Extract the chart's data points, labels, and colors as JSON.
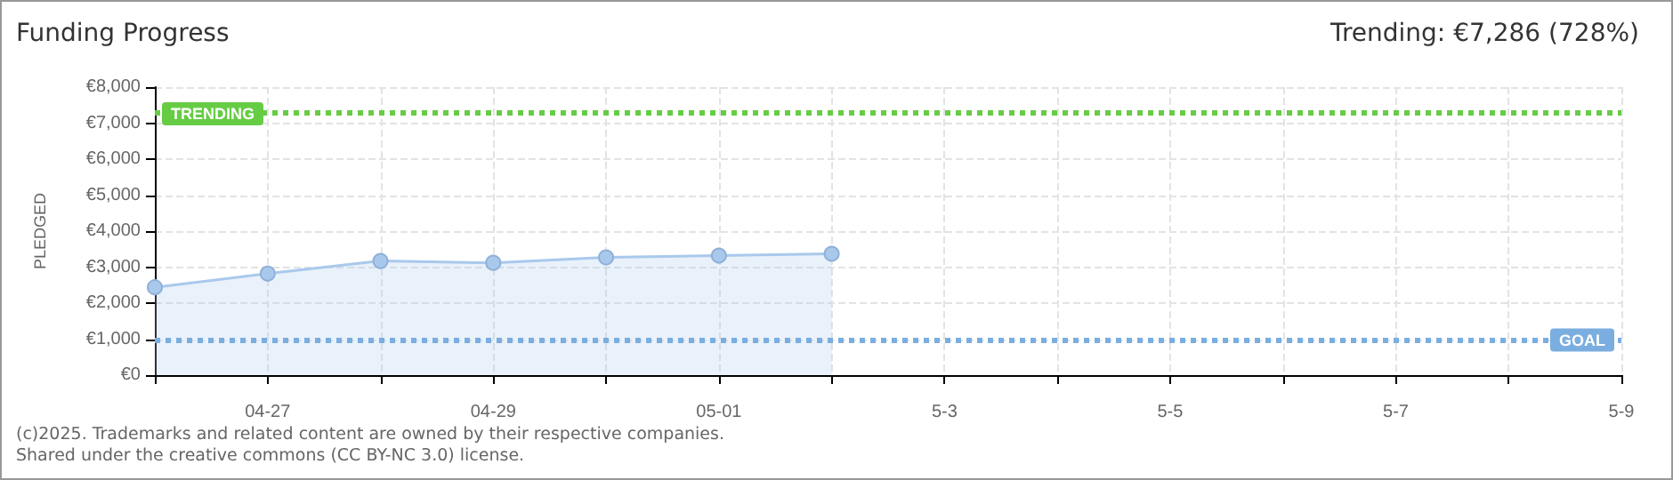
{
  "chart_data": {
    "type": "area",
    "title": "Funding Progress",
    "subtitle": "Trending: €7,286 (728%)",
    "ylabel": "PLEDGED",
    "x": [
      "--04-26",
      "--04-27",
      "--04-28",
      "--04-29",
      "--04-30",
      "--05-01",
      "--05-02"
    ],
    "series": [
      {
        "color": "#a9c9ec",
        "values": [
          2440,
          2820,
          3170,
          3120,
          3270,
          3320,
          3370
        ]
      }
    ],
    "xlim": [
      "--04-26",
      "--05-09"
    ],
    "xticks": [
      {
        "value": "--04-26",
        "label": null
      },
      {
        "value": "--04-27",
        "label": "04-27"
      },
      {
        "value": "--04-28",
        "label": null
      },
      {
        "value": "--04-29",
        "label": "04-29"
      },
      {
        "value": "--04-30",
        "label": null
      },
      {
        "value": "--05-01",
        "label": "05-01"
      },
      {
        "value": "--05-02",
        "label": null
      },
      {
        "value": "--05-03",
        "label": "5-3"
      },
      {
        "value": "--05-04",
        "label": null
      },
      {
        "value": "--05-05",
        "label": "5-5"
      },
      {
        "value": "--05-06",
        "label": null
      },
      {
        "value": "--05-07",
        "label": "5-7"
      },
      {
        "value": "--05-08",
        "label": null
      },
      {
        "value": "--05-09",
        "label": "5-9"
      }
    ],
    "ylim": [
      0,
      8000
    ],
    "yticks": [
      {
        "value": 0,
        "label": "€0"
      },
      {
        "value": 1000,
        "label": "€1,000"
      },
      {
        "value": 2000,
        "label": "€2,000"
      },
      {
        "value": 3000,
        "label": "€3,000"
      },
      {
        "value": 4000,
        "label": "€4,000"
      },
      {
        "value": 5000,
        "label": "€5,000"
      },
      {
        "value": 6000,
        "label": "€6,000"
      },
      {
        "value": 7000,
        "label": "€7,000"
      },
      {
        "value": 8000,
        "label": "€8,000"
      }
    ],
    "ref_lines": [
      {
        "axis": "y",
        "value": 7286,
        "label": "TRENDING",
        "color": "#66cc44",
        "line_style": "dotted"
      },
      {
        "axis": "y",
        "value": 1000,
        "label": "GOAL",
        "color": "#7aaee0",
        "line_style": "dotted"
      }
    ],
    "grid": true,
    "marker": "circle",
    "annotations": [
      "(c)2025. Trademarks and related content are owned by their respective companies.",
      "Shared under the creative commons (CC BY-NC 3.0) license."
    ]
  }
}
